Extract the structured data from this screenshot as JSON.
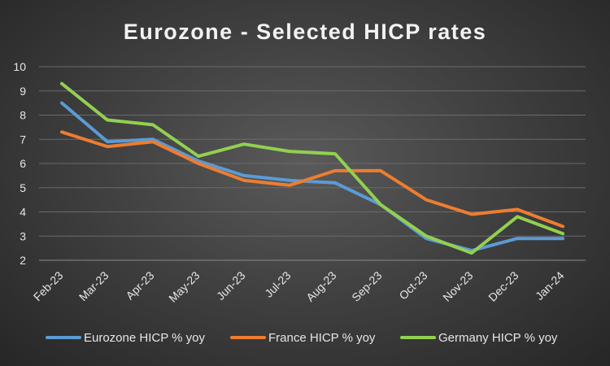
{
  "chart_data": {
    "type": "line",
    "title": "Eurozone - Selected HICP rates",
    "categories": [
      "Feb-23",
      "Mar-23",
      "Apr-23",
      "May-23",
      "Jun-23",
      "Jul-23",
      "Aug-23",
      "Sep-23",
      "Oct-23",
      "Nov-23",
      "Dec-23",
      "Jan-24"
    ],
    "ylim": [
      2,
      10
    ],
    "yticks": [
      2,
      3,
      4,
      5,
      6,
      7,
      8,
      9,
      10
    ],
    "grid": true,
    "legend_position": "bottom",
    "series": [
      {
        "name": "Eurozone HICP % yoy",
        "color": "#5b9bd5",
        "values": [
          8.5,
          6.9,
          7.0,
          6.1,
          5.5,
          5.3,
          5.2,
          4.3,
          2.9,
          2.4,
          2.9,
          2.9
        ]
      },
      {
        "name": "France HICP % yoy",
        "color": "#ed7d31",
        "values": [
          7.3,
          6.7,
          6.9,
          6.0,
          5.3,
          5.1,
          5.7,
          5.7,
          4.5,
          3.9,
          4.1,
          3.4
        ]
      },
      {
        "name": "Germany HICP % yoy",
        "color": "#92d050",
        "values": [
          9.3,
          7.8,
          7.6,
          6.3,
          6.8,
          6.5,
          6.4,
          4.3,
          3.0,
          2.3,
          3.8,
          3.1
        ]
      }
    ]
  }
}
